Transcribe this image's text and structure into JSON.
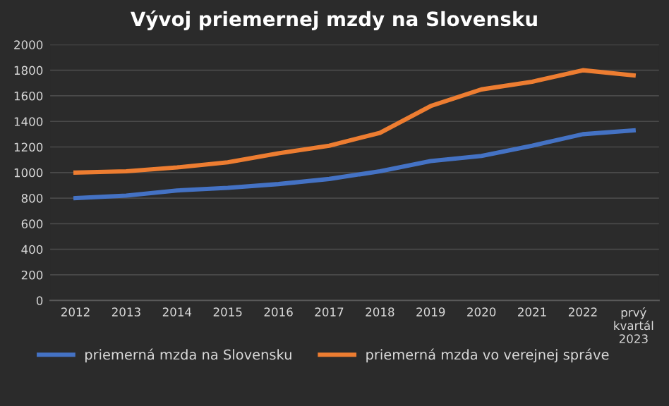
{
  "chart_data": {
    "type": "line",
    "title": "Vývoj priemernej mzdy na Slovensku",
    "categories": [
      "2012",
      "2013",
      "2014",
      "2015",
      "2016",
      "2017",
      "2018",
      "2019",
      "2020",
      "2021",
      "2022",
      "prvý\nkvartál\n2023"
    ],
    "series": [
      {
        "name": "priemerná mzda na Slovensku",
        "color": "#4472c4",
        "values": [
          800,
          820,
          860,
          880,
          910,
          950,
          1010,
          1090,
          1130,
          1210,
          1300,
          1330
        ]
      },
      {
        "name": "priemerná mzda vo verejnej správe",
        "color": "#ed7d31",
        "values": [
          1000,
          1010,
          1040,
          1080,
          1150,
          1210,
          1310,
          1520,
          1650,
          1710,
          1800,
          1760
        ]
      }
    ],
    "ylim": [
      0,
      2000
    ],
    "yticks": [
      0,
      200,
      400,
      600,
      800,
      1000,
      1200,
      1400,
      1600,
      1800,
      2000
    ],
    "grid": "y",
    "legend": "bottom",
    "marker": "none",
    "line_style": "solid"
  }
}
